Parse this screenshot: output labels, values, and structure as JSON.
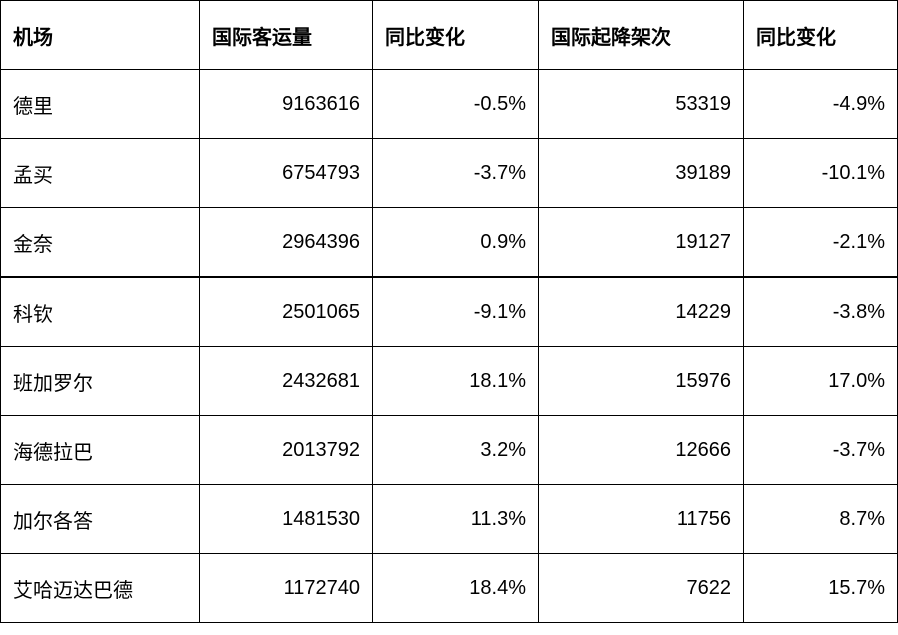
{
  "table": {
    "headers": [
      "机场",
      "国际客运量",
      "同比变化",
      "国际起降架次",
      "同比变化"
    ],
    "rows": [
      [
        "德里",
        "9163616",
        "-0.5%",
        "53319",
        "-4.9%"
      ],
      [
        "孟买",
        "6754793",
        "-3.7%",
        "39189",
        "-10.1%"
      ],
      [
        "金奈",
        "2964396",
        "0.9%",
        "19127",
        "-2.1%"
      ],
      [
        "科钦",
        "2501065",
        "-9.1%",
        "14229",
        "-3.8%"
      ],
      [
        "班加罗尔",
        "2432681",
        "18.1%",
        "15976",
        "17.0%"
      ],
      [
        "海德拉巴",
        "2013792",
        "3.2%",
        "12666",
        "-3.7%"
      ],
      [
        "加尔各答",
        "1481530",
        "11.3%",
        "11756",
        "8.7%"
      ],
      [
        "艾哈迈达巴德",
        "1172740",
        "18.4%",
        "7622",
        "15.7%"
      ]
    ]
  }
}
